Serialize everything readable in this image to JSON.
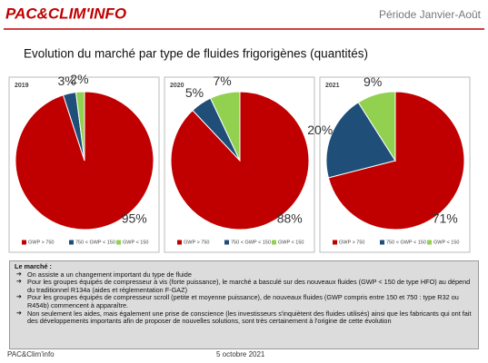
{
  "header": {
    "logo": "PAC&CLIM'INFO",
    "period": "Période Janvier-Août",
    "title": "Evolution du marché par type de fluides frigorigènes (quantités)"
  },
  "chart_data": [
    {
      "type": "pie",
      "title": "2019",
      "categories": [
        "GWP > 750",
        "750 < GWP < 150",
        "GWP < 150"
      ],
      "values": [
        95,
        3,
        2
      ],
      "value_labels": [
        "95%",
        "3%",
        "2%"
      ],
      "colors": [
        "#c00000",
        "#1f4e79",
        "#92d050"
      ]
    },
    {
      "type": "pie",
      "title": "2020",
      "categories": [
        "GWP > 750",
        "750 < GWP < 150",
        "GWP < 150"
      ],
      "values": [
        88,
        5,
        7
      ],
      "value_labels": [
        "88%",
        "5%",
        "7%"
      ],
      "colors": [
        "#c00000",
        "#1f4e79",
        "#92d050"
      ]
    },
    {
      "type": "pie",
      "title": "2021",
      "categories": [
        "GWP > 750",
        "750 < GWP < 150",
        "GWP < 150"
      ],
      "values": [
        71,
        20,
        9
      ],
      "value_labels": [
        "71%",
        "20%",
        "9%"
      ],
      "colors": [
        "#c00000",
        "#1f4e79",
        "#92d050"
      ]
    }
  ],
  "notes": {
    "heading": "Le marché :",
    "items": [
      "On assiste a un changement important du type de fluide",
      "Pour les groupes équipés de compresseur à vis (forte puissance), le marché a basculé sur des nouveaux fluides (GWP < 150 de type HFO) au dépend du traditionnel R134a (aides et réglementation F-GAZ)",
      "Pour les groupes équipés de compresseur scroll (petite et moyenne puissance), de nouveaux fluides (GWP compris entre 150 et 750 : type R32 ou R454b) commencent à apparaître.",
      "Non seulement les aides, mais également une prise de conscience (les investisseurs s'inquiètent des fluides utilisés) ainsi que  les fabricants qui ont fait des développements importants afin de proposer de nouvelles solutions, sont très certainement à l'origine de cette évolution"
    ]
  },
  "footer": {
    "left": "PAC&Clim'info",
    "center": "5 octobre 2021"
  }
}
